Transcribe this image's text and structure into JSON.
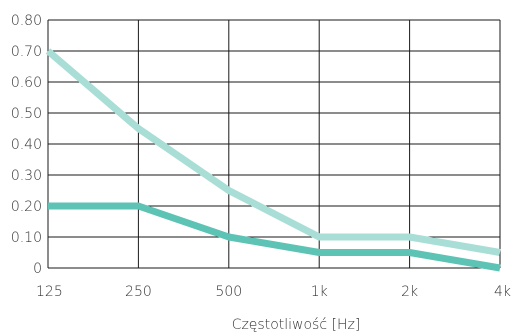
{
  "chart_data": {
    "type": "line",
    "title": "",
    "xlabel": "Częstotliwość [Hz]",
    "ylabel": "",
    "x": [
      "125",
      "250",
      "500",
      "1k",
      "2k",
      "4k"
    ],
    "y_ticks": [
      "0",
      "0.10",
      "0.20",
      "0.30",
      "0.40",
      "0.50",
      "0.60",
      "0.70",
      "0.80"
    ],
    "ylim": [
      0,
      0.8
    ],
    "grid": true,
    "series": [
      {
        "values": [
          0.7,
          0.45,
          0.25,
          0.1,
          0.1,
          0.05
        ],
        "color": "#a8ded6"
      },
      {
        "values": [
          0.2,
          0.2,
          0.1,
          0.05,
          0.05,
          0.0
        ],
        "color": "#5cc3b5"
      }
    ]
  }
}
